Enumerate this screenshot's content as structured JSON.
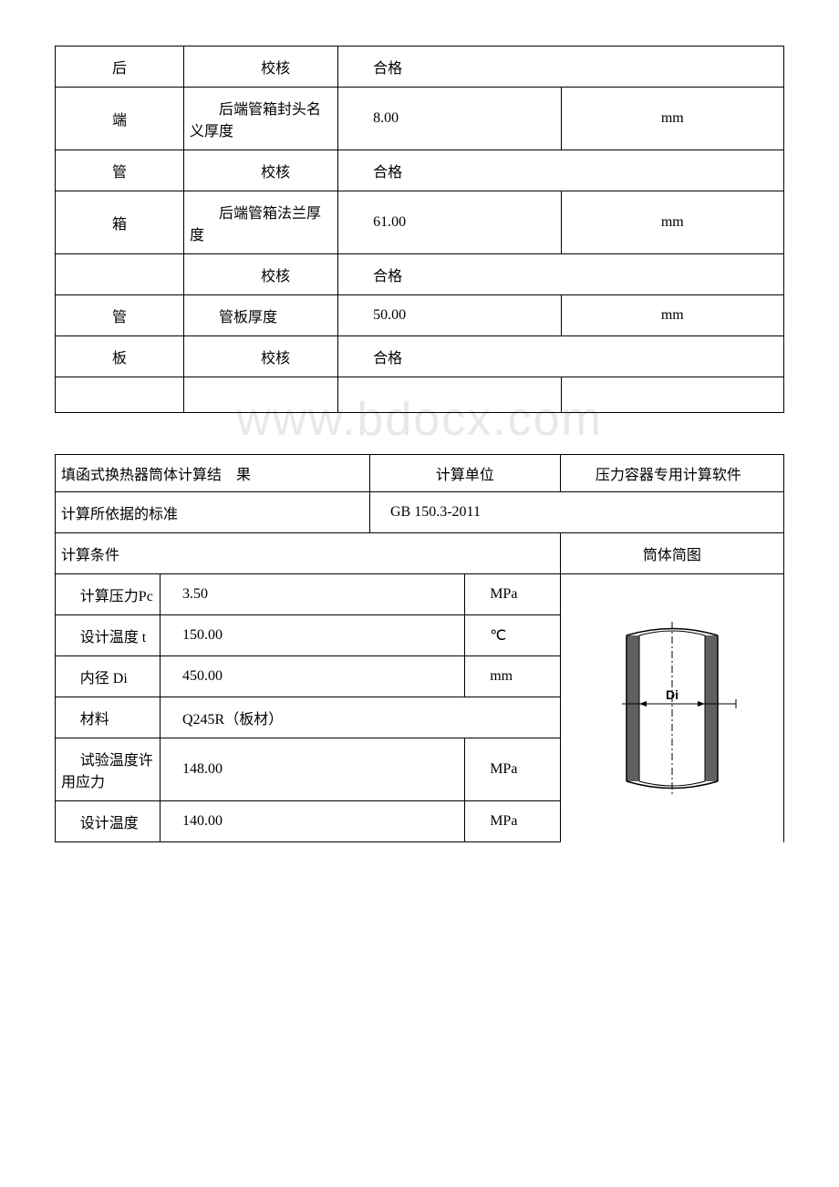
{
  "table1": {
    "rows": [
      {
        "c1": "后",
        "c2": "校核",
        "c2_class": "indent center",
        "c3": "合格",
        "c3_class": "indent",
        "c4": "",
        "span34": true
      },
      {
        "c1": "端",
        "c2": "后端管箱封头名义厚度",
        "c2_class": "indent",
        "c3": "8.00",
        "c3_class": "indent",
        "c4": "mm",
        "span34": false
      },
      {
        "c1": "管",
        "c2": "校核",
        "c2_class": "indent center",
        "c3": "合格",
        "c3_class": "indent",
        "c4": "",
        "span34": true
      },
      {
        "c1": "箱",
        "c2": "后端管箱法兰厚度",
        "c2_class": "indent",
        "c3": "61.00",
        "c3_class": "indent",
        "c4": "mm",
        "span34": false
      },
      {
        "c1": "",
        "c2": "校核",
        "c2_class": "indent center",
        "c3": "合格",
        "c3_class": "indent",
        "c4": "",
        "span34": true
      },
      {
        "c1": "管",
        "c2": "管板厚度",
        "c2_class": "indent",
        "c3": "50.00",
        "c3_class": "indent",
        "c4": "mm",
        "span34": false
      },
      {
        "c1": "板",
        "c2": "校核",
        "c2_class": "indent center",
        "c3": "合格",
        "c3_class": "indent",
        "c4": "",
        "span34": true
      },
      {
        "c1": "",
        "c2": "",
        "c2_class": "",
        "c3": "",
        "c3_class": "",
        "c4": "",
        "span34": false,
        "split3": true
      }
    ]
  },
  "table2": {
    "header": {
      "title": "填函式换热器筒体计算结    果",
      "col2": "计算单位",
      "col3": "压力容器专用计算软件"
    },
    "standard_label": "计算所依据的标准",
    "standard_value": "GB 150.3-2011",
    "cond_label": "计算条件",
    "diag_label": "筒体简图",
    "rows": [
      {
        "label": "计算压力Pc",
        "value": "3.50",
        "unit": "MPa"
      },
      {
        "label": "设计温度 t",
        "value": "150.00",
        "unit": "℃"
      },
      {
        "label": "内径 Di",
        "value": "450.00",
        "unit": "mm"
      },
      {
        "label": "材料",
        "value": "Q245R（板材）",
        "unit": "",
        "nounit": true
      },
      {
        "label": "试验温度许用应力",
        "value": "148.00",
        "unit": "MPa"
      },
      {
        "label": "设计温度",
        "value": "140.00",
        "unit": "MPa"
      }
    ],
    "diagram": {
      "di_label": "Di",
      "wall_color": "#606060",
      "bg_color": "#ffffff",
      "line_color": "#000000"
    }
  }
}
